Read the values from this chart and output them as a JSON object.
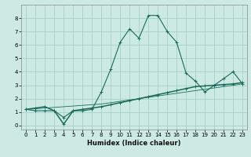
{
  "title": "",
  "xlabel": "Humidex (Indice chaleur)",
  "ylabel": "",
  "background_color": "#cce9e4",
  "grid_color": "#aad4cc",
  "line_color": "#1a6b5a",
  "x_values": [
    0,
    1,
    2,
    3,
    4,
    5,
    6,
    7,
    8,
    9,
    10,
    11,
    12,
    13,
    14,
    15,
    16,
    17,
    18,
    19,
    20,
    21,
    22,
    23
  ],
  "line1_y": [
    1.2,
    1.1,
    1.1,
    1.1,
    0.6,
    1.1,
    1.1,
    1.2,
    2.5,
    4.2,
    6.2,
    7.2,
    6.5,
    8.2,
    8.2,
    7.0,
    6.2,
    3.9,
    3.3,
    2.5,
    3.0,
    3.5,
    4.0,
    3.1
  ],
  "line2_y": [
    1.2,
    1.3,
    1.4,
    1.1,
    0.1,
    1.1,
    1.2,
    1.3,
    1.4,
    1.55,
    1.7,
    1.85,
    2.0,
    2.15,
    2.3,
    2.45,
    2.6,
    2.75,
    2.9,
    2.95,
    3.0,
    3.05,
    3.1,
    3.2
  ],
  "line3_y": [
    1.2,
    1.25,
    1.3,
    1.35,
    1.4,
    1.45,
    1.5,
    1.55,
    1.6,
    1.7,
    1.8,
    1.9,
    2.0,
    2.1,
    2.2,
    2.3,
    2.4,
    2.5,
    2.6,
    2.7,
    2.8,
    2.9,
    3.0,
    3.1
  ],
  "ylim": [
    -0.3,
    9.0
  ],
  "xlim": [
    -0.5,
    23.5
  ],
  "yticks": [
    0,
    1,
    2,
    3,
    4,
    5,
    6,
    7,
    8
  ],
  "xticks": [
    0,
    1,
    2,
    3,
    4,
    5,
    6,
    7,
    8,
    9,
    10,
    11,
    12,
    13,
    14,
    15,
    16,
    17,
    18,
    19,
    20,
    21,
    22,
    23
  ],
  "xlabel_fontsize": 6.0,
  "tick_fontsize": 5.0
}
